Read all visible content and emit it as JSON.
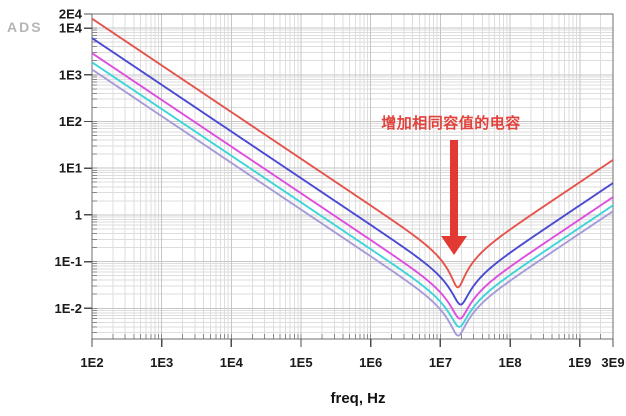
{
  "logo": "ADS",
  "chart_data": {
    "type": "line",
    "title": "",
    "xlabel": "freq, Hz",
    "ylabel": "",
    "grid": true,
    "legend": "none",
    "x_axis": {
      "scale": "log",
      "min": 100.0,
      "max": 3000000000.0,
      "ticks": [
        {
          "label": "1E2",
          "value": 100.0
        },
        {
          "label": "1E3",
          "value": 1000.0
        },
        {
          "label": "1E4",
          "value": 10000.0
        },
        {
          "label": "1E5",
          "value": 100000.0
        },
        {
          "label": "1E6",
          "value": 1000000.0
        },
        {
          "label": "1E7",
          "value": 10000000.0
        },
        {
          "label": "1E8",
          "value": 100000000.0
        },
        {
          "label": "1E9",
          "value": 1000000000.0
        },
        {
          "label": "3E9",
          "value": 3000000000.0
        }
      ]
    },
    "y_axis": {
      "scale": "log",
      "min": 0.0022,
      "max": 20000.0,
      "ticks": [
        {
          "label": "2E4",
          "value": 20000.0
        },
        {
          "label": "1E4",
          "value": 10000.0
        },
        {
          "label": "1E3",
          "value": 1000.0
        },
        {
          "label": "1E2",
          "value": 100.0
        },
        {
          "label": "1E1",
          "value": 10.0
        },
        {
          "label": "1",
          "value": 1
        },
        {
          "label": "1E-1",
          "value": 0.1
        },
        {
          "label": "1E-2",
          "value": 0.01
        }
      ]
    },
    "series_model": "impedance |Z| = sqrt(esr^2 + (2*pi*f*L - 1/(2*pi*f*C))^2); C from z_at_100hz, L from z_at_3ghz",
    "series": [
      {
        "name": "red",
        "color": "#e4544c",
        "z_at_100hz": 15900,
        "z_min_esr": 0.028,
        "z_at_3ghz": 15.0,
        "f_resonance": 18000000.0
      },
      {
        "name": "blue",
        "color": "#4a4ad2",
        "z_at_100hz": 6100,
        "z_min_esr": 0.012,
        "z_at_3ghz": 4.8,
        "f_resonance": 19000000.0
      },
      {
        "name": "magenta",
        "color": "#de4ede",
        "z_at_100hz": 2900,
        "z_min_esr": 0.006,
        "z_at_3ghz": 2.4,
        "f_resonance": 19000000.0
      },
      {
        "name": "cyan",
        "color": "#3fd4da",
        "z_at_100hz": 1850,
        "z_min_esr": 0.004,
        "z_at_3ghz": 1.6,
        "f_resonance": 19000000.0
      },
      {
        "name": "violet",
        "color": "#a79bd8",
        "z_at_100hz": 1300,
        "z_min_esr": 0.0026,
        "z_at_3ghz": 1.2,
        "f_resonance": 18000000.0
      }
    ],
    "annotation": {
      "text": "增加相同容值的电容",
      "color": "#e2423b",
      "arrow_color": "#e23a32",
      "arrow_points_to_freq": 15000000.0,
      "arrow_value_from": 37,
      "arrow_value_to": 0.16
    },
    "colors": {
      "frame": "#6f6f6f",
      "grid_minor": "#dddddd",
      "grid_major": "#c6c6c6",
      "tick": "#4d4d4d",
      "logo": "#b5b5b5"
    }
  }
}
